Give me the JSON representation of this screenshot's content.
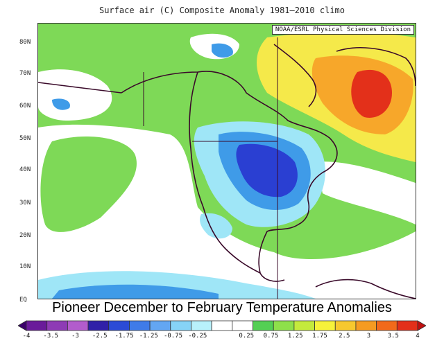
{
  "title": "Surface air (C) Composite Anomaly 1981–2010 climo",
  "credit": "NOAA/ESRL Physical Sciences Division",
  "caption": "Pioneer December to February Temperature Anomalies",
  "lat_labels": [
    "80N",
    "70N",
    "60N",
    "50N",
    "40N",
    "30N",
    "20N",
    "10N",
    "EQ"
  ],
  "legend": {
    "levels": [
      "-4",
      "-3.5",
      "-3",
      "-2.5",
      "-1.75",
      "-1.25",
      "-0.75",
      "-0.25",
      "0.25",
      "0.75",
      "1.25",
      "1.75",
      "2.5",
      "3",
      "3.5",
      "4"
    ],
    "colors": [
      "#3b006b",
      "#6a1b9a",
      "#8e3bb5",
      "#b25ccc",
      "#3020a8",
      "#2b4bd6",
      "#3f7be8",
      "#63a6f2",
      "#86d3f7",
      "#b8f1fb",
      "#ffffff",
      "#ffffff",
      "#54cf54",
      "#8ee04a",
      "#c4ea3c",
      "#f7f23a",
      "#f7c82e",
      "#f59b22",
      "#f26a1b",
      "#e3301a",
      "#c01010"
    ]
  },
  "colors": {
    "green": "#7ed957",
    "white": "#ffffff",
    "light_blue": "#9fe6f7",
    "mid_blue": "#3f9be8",
    "deep_blue": "#2a3fd2",
    "yellow": "#f5e94a",
    "orange": "#f7a72a",
    "red": "#e3301a",
    "land_line": "#3a0a2a"
  }
}
